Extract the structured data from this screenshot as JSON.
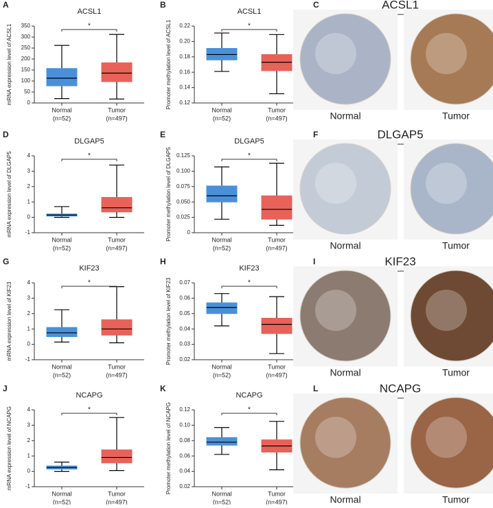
{
  "chart_data": [
    {
      "type": "box",
      "panel": "A",
      "title": "ACSL1",
      "ylabel": "mRNA expression level of ACSL1",
      "categories": [
        "Normal",
        "Tumor"
      ],
      "category_notes": [
        "(n=52)",
        "(n=497)"
      ],
      "colors": [
        "#4a90d9",
        "#e8625a"
      ],
      "annotation": "*",
      "ylim": [
        0,
        350
      ],
      "yticks": [
        0,
        50,
        100,
        150,
        200,
        250,
        300,
        350
      ],
      "boxes": [
        {
          "min": 20,
          "q1": 78,
          "median": 113,
          "q3": 157,
          "max": 262
        },
        {
          "min": 18,
          "q1": 97,
          "median": 136,
          "q3": 183,
          "max": 312
        }
      ]
    },
    {
      "type": "box",
      "panel": "B",
      "title": "ACSL1",
      "ylabel": "Promoter methylation level of ACSL1",
      "categories": [
        "Normal",
        "Tumor"
      ],
      "category_notes": [
        "(n=52)",
        "(n=497)"
      ],
      "colors": [
        "#4a90d9",
        "#e8625a"
      ],
      "annotation": "*",
      "ylim": [
        0.12,
        0.22
      ],
      "yticks": [
        0.12,
        0.14,
        0.16,
        0.18,
        {
          "value": 0.2,
          "label": "0.20"
        },
        0.22
      ],
      "boxes": [
        {
          "min": 0.161,
          "q1": 0.176,
          "median": 0.183,
          "q3": 0.191,
          "max": 0.211
        },
        {
          "min": 0.132,
          "q1": 0.162,
          "median": 0.173,
          "q3": 0.183,
          "max": 0.209
        }
      ]
    },
    {
      "type": "box",
      "panel": "D",
      "title": "DLGAP5",
      "ylabel": "mRNA expression level of DLGAP5",
      "categories": [
        "Normal",
        "Tumor"
      ],
      "category_notes": [
        "(n=52)",
        "(n=497)"
      ],
      "colors": [
        "#4a90d9",
        "#e8625a"
      ],
      "annotation": "*",
      "ylim": [
        -1,
        4
      ],
      "yticks": [
        -1,
        0,
        1,
        2,
        3,
        4
      ],
      "boxes": [
        {
          "min": 0.0,
          "q1": 0.08,
          "median": 0.15,
          "q3": 0.22,
          "max": 0.7
        },
        {
          "min": 0.0,
          "q1": 0.35,
          "median": 0.62,
          "q3": 1.3,
          "max": 3.4
        }
      ]
    },
    {
      "type": "box",
      "panel": "E",
      "title": "DLGAP5",
      "ylabel": "Promoter methylation level of DLGAP5",
      "categories": [
        "Normal",
        "Tumor"
      ],
      "category_notes": [
        "(n=52)",
        "(n=497)"
      ],
      "colors": [
        "#4a90d9",
        "#e8625a"
      ],
      "annotation": "*",
      "ylim": [
        0,
        0.125
      ],
      "yticks": [
        0,
        0.025,
        {
          "value": 0.05,
          "label": "0.050"
        },
        0.075,
        {
          "value": 0.1,
          "label": "0.100"
        },
        0.125
      ],
      "boxes": [
        {
          "min": 0.022,
          "q1": 0.05,
          "median": 0.06,
          "q3": 0.076,
          "max": 0.107
        },
        {
          "min": 0.012,
          "q1": 0.022,
          "median": 0.038,
          "q3": 0.06,
          "max": 0.113
        }
      ]
    },
    {
      "type": "box",
      "panel": "G",
      "title": "KIF23",
      "ylabel": "mRNA expression level of KIF23",
      "categories": [
        "Normal",
        "Tumor"
      ],
      "category_notes": [
        "(n=52)",
        "(n=497)"
      ],
      "colors": [
        "#4a90d9",
        "#e8625a"
      ],
      "annotation": "*",
      "ylim": [
        -1,
        4
      ],
      "yticks": [
        -1,
        0,
        1,
        2,
        3,
        4
      ],
      "boxes": [
        {
          "min": 0.15,
          "q1": 0.5,
          "median": 0.75,
          "q3": 1.1,
          "max": 2.25
        },
        {
          "min": 0.1,
          "q1": 0.6,
          "median": 1.0,
          "q3": 1.6,
          "max": 3.75
        }
      ]
    },
    {
      "type": "box",
      "panel": "H",
      "title": "KIF23",
      "ylabel": "Promoter methylation level of KIF23",
      "categories": [
        "Normal",
        "Tumor"
      ],
      "category_notes": [
        "(n=52)",
        "(n=497)"
      ],
      "colors": [
        "#4a90d9",
        "#e8625a"
      ],
      "annotation": "*",
      "ylim": [
        0.02,
        0.07
      ],
      "yticks": [
        0.02,
        0.03,
        0.04,
        0.05,
        0.06,
        0.07
      ],
      "boxes": [
        {
          "min": 0.042,
          "q1": 0.05,
          "median": 0.054,
          "q3": 0.057,
          "max": 0.063
        },
        {
          "min": 0.024,
          "q1": 0.037,
          "median": 0.043,
          "q3": 0.047,
          "max": 0.061
        }
      ]
    },
    {
      "type": "box",
      "panel": "J",
      "title": "NCAPG",
      "ylabel": "mRNA expression level of NCAPG",
      "categories": [
        "Normal",
        "Tumor"
      ],
      "category_notes": [
        "(n=52)",
        "(n=497)"
      ],
      "colors": [
        "#4a90d9",
        "#e8625a"
      ],
      "annotation": "*",
      "ylim": [
        -1,
        4
      ],
      "yticks": [
        -1,
        0,
        1,
        2,
        3,
        4
      ],
      "boxes": [
        {
          "min": 0.0,
          "q1": 0.15,
          "median": 0.25,
          "q3": 0.35,
          "max": 0.6
        },
        {
          "min": 0.05,
          "q1": 0.55,
          "median": 0.9,
          "q3": 1.4,
          "max": 3.5
        }
      ]
    },
    {
      "type": "box",
      "panel": "K",
      "title": "NCAPG",
      "ylabel": "Promoter methylation level of NCAPG",
      "categories": [
        "Normal",
        "Tumor"
      ],
      "category_notes": [
        "(n=52)",
        "(n=497)"
      ],
      "colors": [
        "#4a90d9",
        "#e8625a"
      ],
      "annotation": "*",
      "ylim": [
        0.02,
        0.12
      ],
      "yticks": [
        0.02,
        0.04,
        0.06,
        0.08,
        {
          "value": 0.1,
          "label": "0.10"
        },
        0.12
      ],
      "boxes": [
        {
          "min": 0.062,
          "q1": 0.074,
          "median": 0.078,
          "q3": 0.084,
          "max": 0.097
        },
        {
          "min": 0.042,
          "q1": 0.065,
          "median": 0.073,
          "q3": 0.081,
          "max": 0.105
        }
      ]
    }
  ],
  "ihc_panels": [
    {
      "panel": "C",
      "title": "ACSL1",
      "labels": [
        "Normal",
        "Tumor"
      ]
    },
    {
      "panel": "F",
      "title": "DLGAP5",
      "labels": [
        "Normal",
        "Tumor"
      ]
    },
    {
      "panel": "I",
      "title": "KIF23",
      "labels": [
        "Normal",
        "Tumor"
      ]
    },
    {
      "panel": "L",
      "title": "NCAPG",
      "labels": [
        "Normal",
        "Tumor"
      ]
    }
  ]
}
